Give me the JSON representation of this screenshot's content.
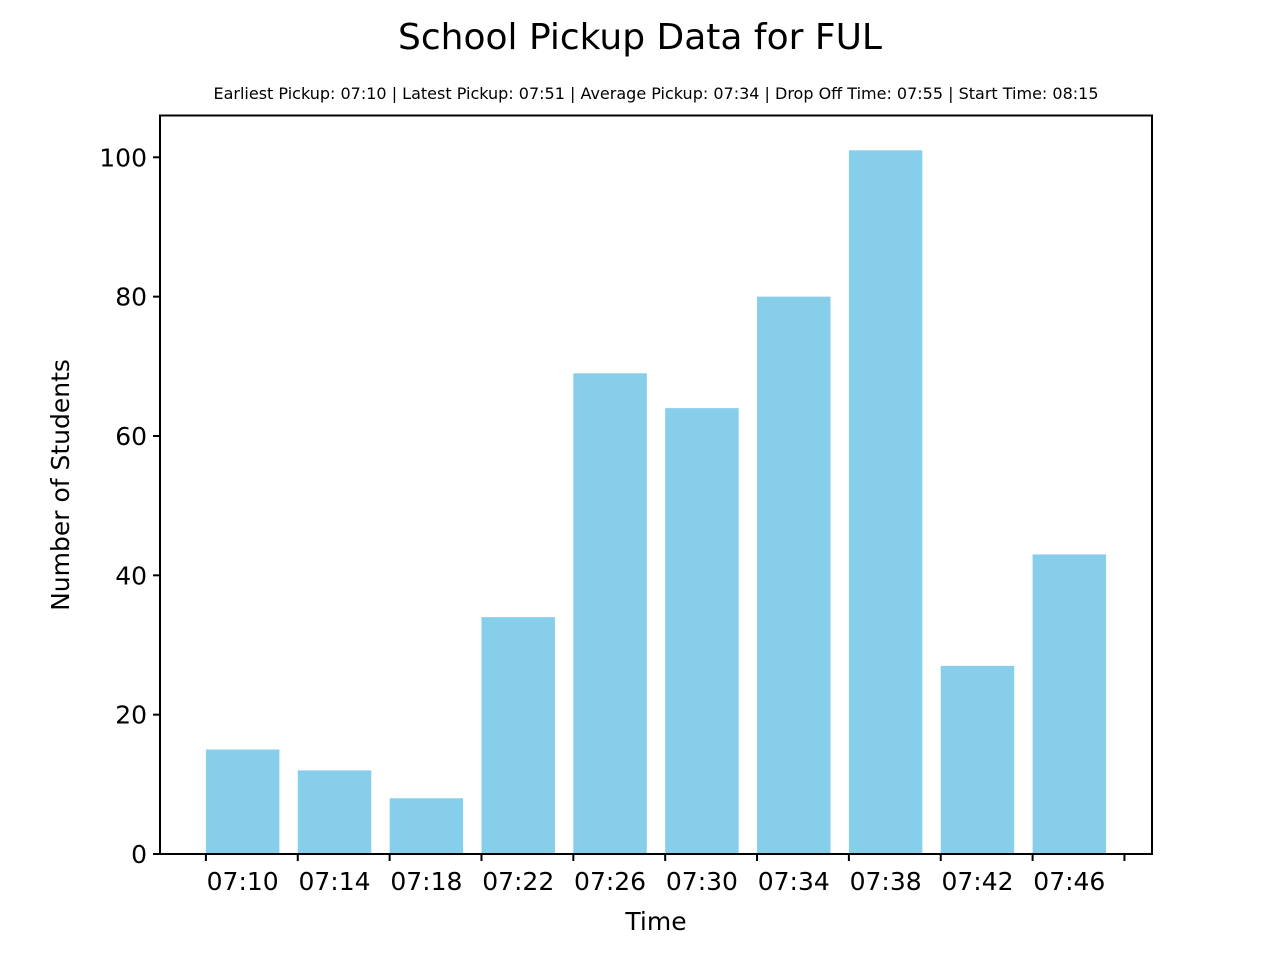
{
  "chart_data": {
    "type": "bar",
    "title": "School Pickup Data for FUL",
    "subtitle": "Earliest Pickup: 07:10 | Latest Pickup: 07:51 | Average Pickup: 07:34 | Drop Off Time: 07:55 | Start Time: 08:15",
    "xlabel": "Time",
    "ylabel": "Number of Students",
    "categories": [
      "07:10",
      "07:14",
      "07:18",
      "07:22",
      "07:26",
      "07:30",
      "07:34",
      "07:38",
      "07:42",
      "07:46"
    ],
    "values": [
      15,
      12,
      8,
      34,
      69,
      64,
      80,
      101,
      27,
      43
    ],
    "ylim": [
      0,
      106
    ],
    "yticks": [
      0,
      20,
      40,
      60,
      80,
      100
    ],
    "ytick_labels": [
      "0",
      "20",
      "40",
      "60",
      "80",
      "100"
    ],
    "grid": false,
    "legend": "none",
    "bar_color": "#87CEEB"
  }
}
